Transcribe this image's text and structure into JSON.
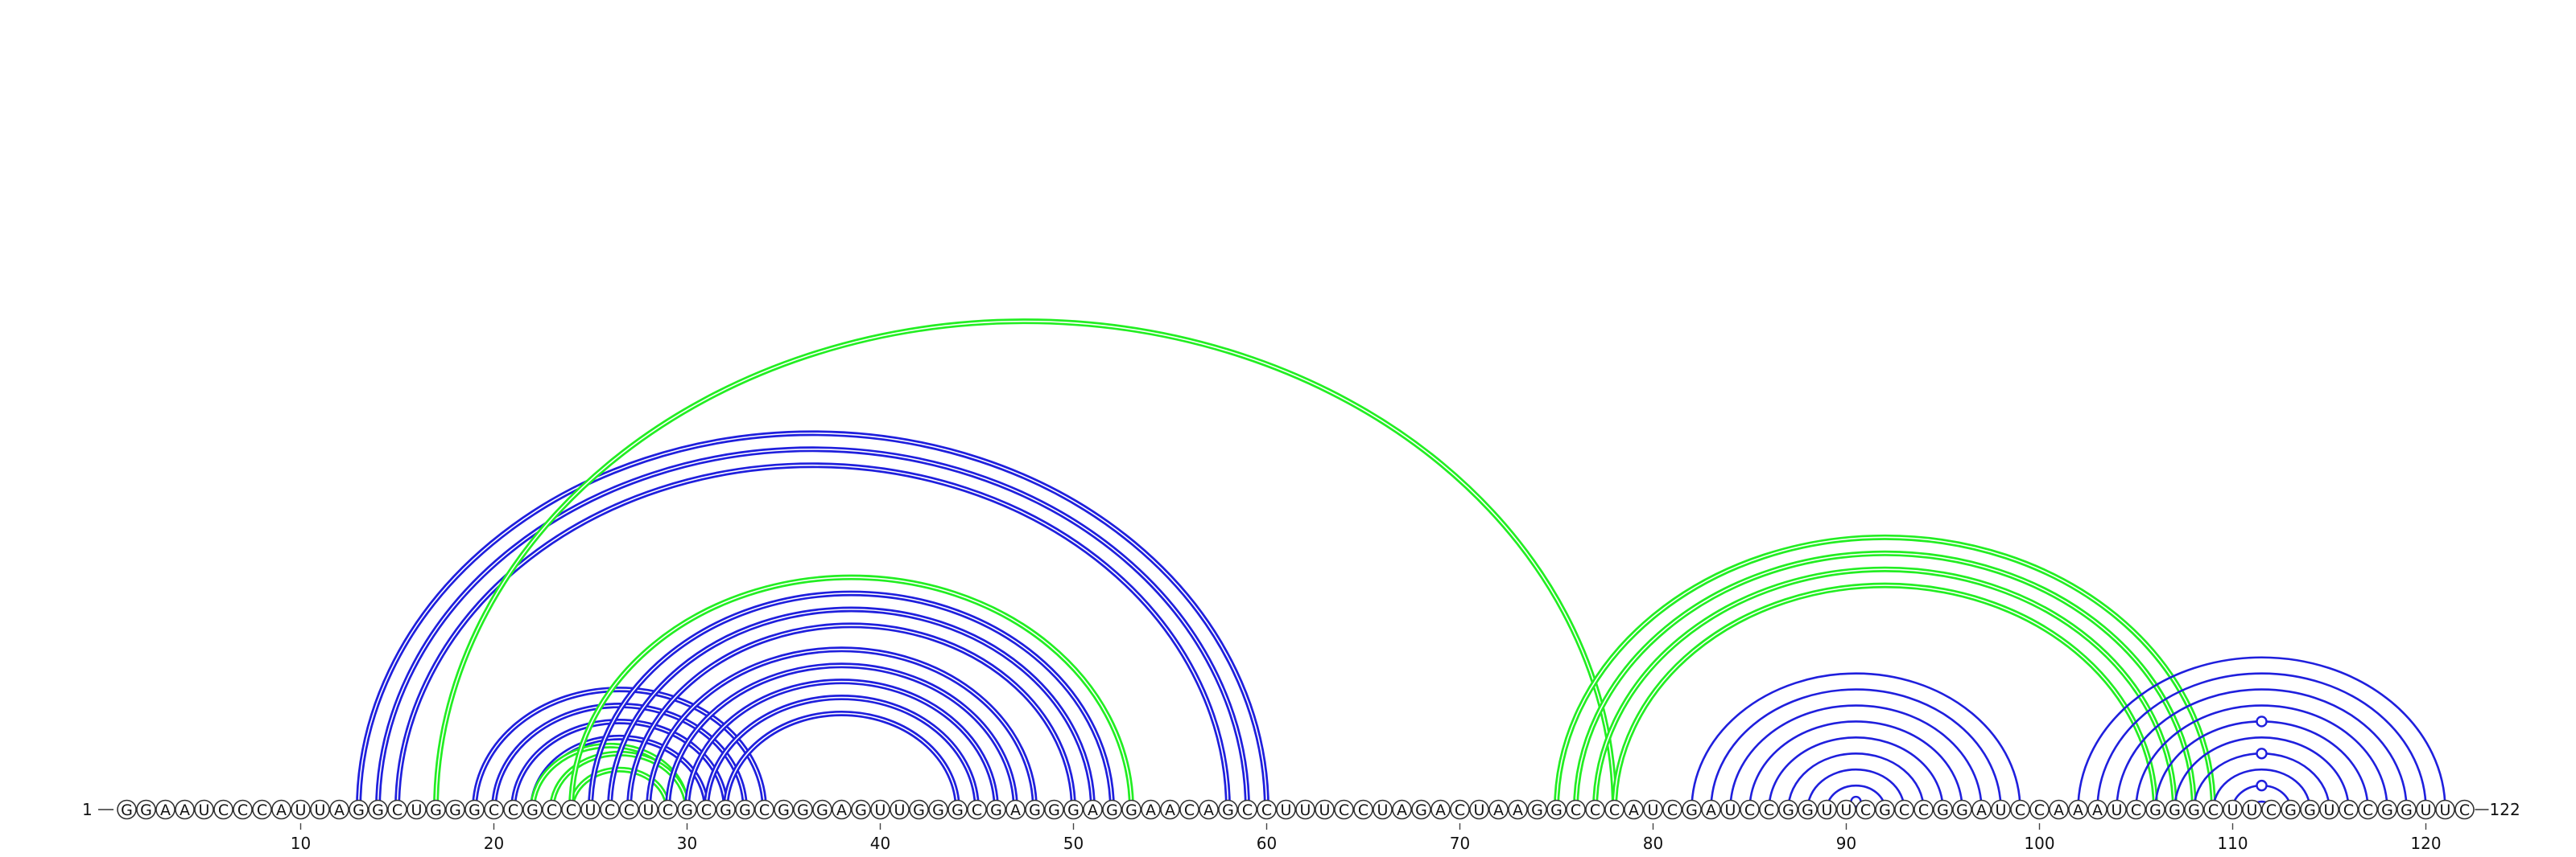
{
  "sequence": "GGAAUCCCAUUAGGCUGGGCCGCCUCCUCGCGGCGGGAGUUGGGCGAGGGAGGAACAGCCUUUCCUAGACUAAGGCCCAUCGAUCCGGUUCGCCGGAUCCAAAUCGGGCUUCGGUCCGGUUC",
  "start_label": "1",
  "end_label": "122",
  "axis": {
    "ticks": [
      {
        "pos": 10,
        "label": "10"
      },
      {
        "pos": 20,
        "label": "20"
      },
      {
        "pos": 30,
        "label": "30"
      },
      {
        "pos": 40,
        "label": "40"
      },
      {
        "pos": 50,
        "label": "50"
      },
      {
        "pos": 60,
        "label": "60"
      },
      {
        "pos": 70,
        "label": "70"
      },
      {
        "pos": 80,
        "label": "80"
      },
      {
        "pos": 90,
        "label": "90"
      },
      {
        "pos": 100,
        "label": "100"
      },
      {
        "pos": 110,
        "label": "110"
      },
      {
        "pos": 120,
        "label": "120"
      }
    ]
  },
  "colors": {
    "blue": "#1f1fdd",
    "green": "#22ee22",
    "background": "#ffffff"
  },
  "chart_data": {
    "type": "arc-diagram",
    "length": 122,
    "pairs": [
      {
        "i": 13,
        "j": 60,
        "color": "blue",
        "double": true
      },
      {
        "i": 14,
        "j": 59,
        "color": "blue",
        "double": true
      },
      {
        "i": 15,
        "j": 58,
        "color": "blue",
        "double": true
      },
      {
        "i": 17,
        "j": 78,
        "color": "green",
        "double": true
      },
      {
        "i": 19,
        "j": 34,
        "color": "blue",
        "double": true
      },
      {
        "i": 20,
        "j": 33,
        "color": "blue",
        "double": true
      },
      {
        "i": 21,
        "j": 32,
        "color": "blue",
        "double": true
      },
      {
        "i": 22,
        "j": 31,
        "color": "blue",
        "double": true
      },
      {
        "i": 22,
        "j": 30,
        "color": "green",
        "double": true
      },
      {
        "i": 23,
        "j": 30,
        "color": "green",
        "double": true
      },
      {
        "i": 24,
        "j": 29,
        "color": "green",
        "double": true
      },
      {
        "i": 24,
        "j": 53,
        "color": "green",
        "double": true
      },
      {
        "i": 25,
        "j": 52,
        "color": "blue",
        "double": true
      },
      {
        "i": 26,
        "j": 51,
        "color": "blue",
        "double": true
      },
      {
        "i": 27,
        "j": 50,
        "color": "blue",
        "double": true
      },
      {
        "i": 28,
        "j": 48,
        "color": "blue",
        "double": true
      },
      {
        "i": 29,
        "j": 47,
        "color": "blue",
        "double": true
      },
      {
        "i": 30,
        "j": 46,
        "color": "blue",
        "double": true
      },
      {
        "i": 31,
        "j": 45,
        "color": "blue",
        "double": true
      },
      {
        "i": 32,
        "j": 44,
        "color": "blue",
        "double": true
      },
      {
        "i": 75,
        "j": 109,
        "color": "green",
        "double": true
      },
      {
        "i": 76,
        "j": 108,
        "color": "green",
        "double": true
      },
      {
        "i": 77,
        "j": 107,
        "color": "green",
        "double": true
      },
      {
        "i": 78,
        "j": 106,
        "color": "green",
        "double": true
      },
      {
        "i": 82,
        "j": 99,
        "color": "blue",
        "double": false
      },
      {
        "i": 83,
        "j": 98,
        "color": "blue",
        "double": false
      },
      {
        "i": 84,
        "j": 97,
        "color": "blue",
        "double": false
      },
      {
        "i": 85,
        "j": 96,
        "color": "blue",
        "double": false
      },
      {
        "i": 86,
        "j": 95,
        "color": "blue",
        "double": false
      },
      {
        "i": 87,
        "j": 94,
        "color": "blue",
        "double": false
      },
      {
        "i": 88,
        "j": 93,
        "color": "blue",
        "double": false
      },
      {
        "i": 89,
        "j": 92,
        "color": "blue",
        "double": false
      },
      {
        "i": 90,
        "j": 91,
        "color": "blue",
        "double": false
      },
      {
        "i": 102,
        "j": 121,
        "color": "blue",
        "double": false
      },
      {
        "i": 103,
        "j": 120,
        "color": "blue",
        "double": false
      },
      {
        "i": 104,
        "j": 119,
        "color": "blue",
        "double": false
      },
      {
        "i": 105,
        "j": 118,
        "color": "blue",
        "double": false
      },
      {
        "i": 106,
        "j": 117,
        "color": "blue",
        "double": false
      },
      {
        "i": 107,
        "j": 116,
        "color": "blue",
        "double": false
      },
      {
        "i": 108,
        "j": 115,
        "color": "blue",
        "double": false
      },
      {
        "i": 109,
        "j": 114,
        "color": "blue",
        "double": false
      },
      {
        "i": 110,
        "j": 113,
        "color": "blue",
        "double": false
      },
      {
        "i": 111,
        "j": 112,
        "color": "blue",
        "double": false
      }
    ],
    "marked_arcs": [
      {
        "i": 90,
        "j": 91
      },
      {
        "i": 110,
        "j": 113
      },
      {
        "i": 108,
        "j": 115
      },
      {
        "i": 106,
        "j": 117
      }
    ]
  }
}
